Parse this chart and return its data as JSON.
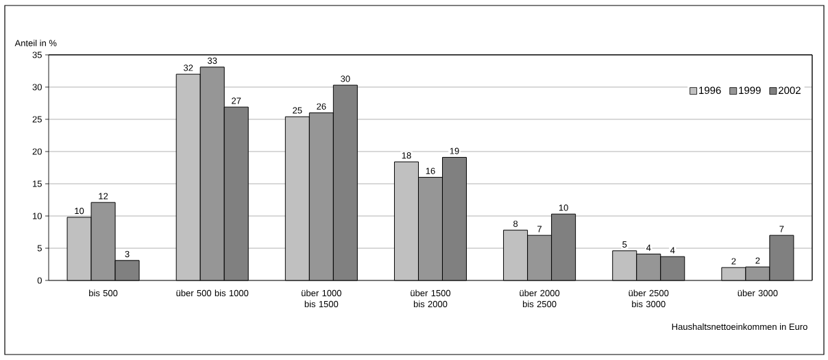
{
  "chart_data": {
    "type": "bar",
    "ylabel": "Anteil in %",
    "xlabel": "Haushaltsnettoeinkommen in Euro",
    "categories": [
      "bis 500",
      "über 500 bis 1000",
      "über 1000 bis 1500",
      "über 1500 bis 2000",
      "über 2000 bis 2500",
      "über 2500 bis 3000",
      "über 3000"
    ],
    "series": [
      {
        "name": "1996",
        "color": "#c0c0c0",
        "values": [
          9.8,
          32.0,
          25.4,
          18.4,
          7.8,
          4.6,
          2.0
        ],
        "value_labels": [
          "10",
          "32",
          "25",
          "18",
          "8",
          "5",
          "2"
        ]
      },
      {
        "name": "1999",
        "color": "#969696",
        "values": [
          12.1,
          33.1,
          26.0,
          16.0,
          7.0,
          4.1,
          2.1
        ],
        "value_labels": [
          "12",
          "33",
          "26",
          "16",
          "7",
          "4",
          "2"
        ]
      },
      {
        "name": "2002",
        "color": "#808080",
        "values": [
          3.1,
          26.9,
          30.3,
          19.1,
          10.3,
          3.7,
          7.0
        ],
        "value_labels": [
          "3",
          "27",
          "30",
          "19",
          "10",
          "4",
          "7"
        ]
      }
    ],
    "ylim": [
      0,
      35
    ],
    "yticks": [
      0,
      5,
      10,
      15,
      20,
      25,
      30,
      35
    ],
    "grid": "y",
    "legend": "top right"
  }
}
